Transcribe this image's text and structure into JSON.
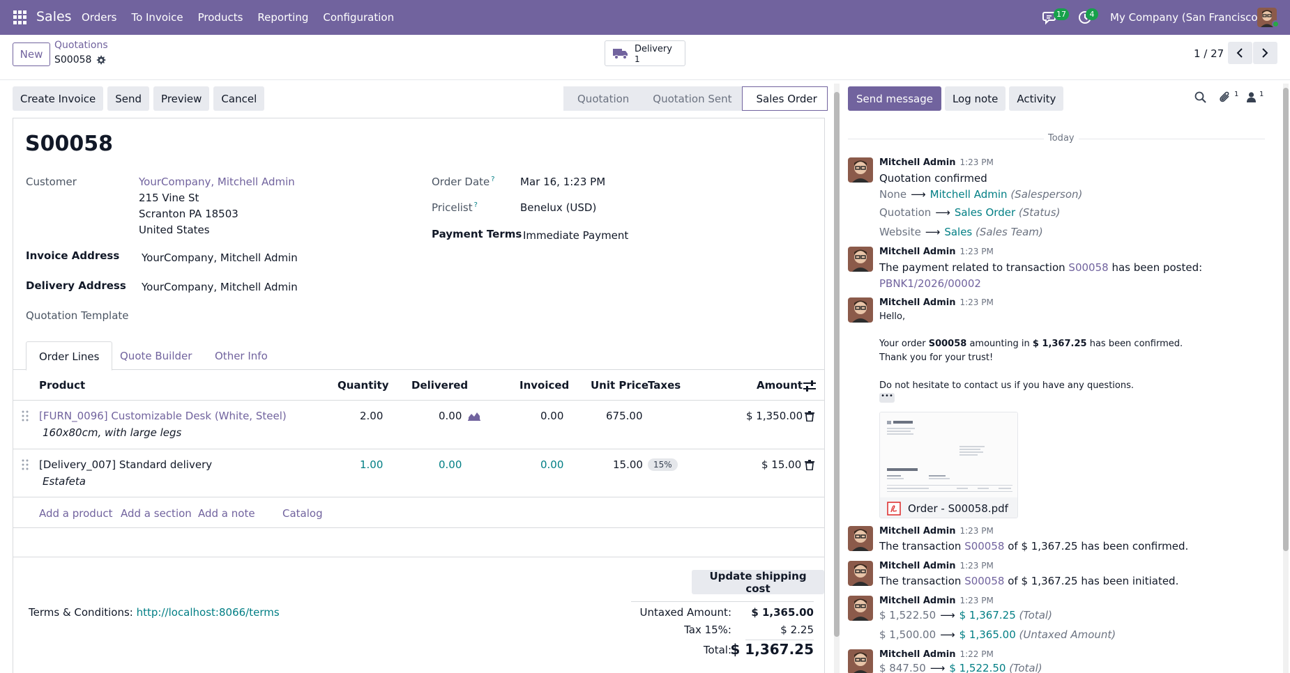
{
  "navbar": {
    "app_name": "Sales",
    "menu": [
      "Orders",
      "To Invoice",
      "Products",
      "Reporting",
      "Configuration"
    ],
    "messages_count": "17",
    "activities_count": "4",
    "company": "My Company (San Francisco)"
  },
  "control": {
    "new_label": "New",
    "breadcrumb": "Quotations",
    "record_name": "S00058",
    "smart_button": {
      "label": "Delivery",
      "count": "1"
    },
    "pager": "1 / 27"
  },
  "statusbar": {
    "actions": [
      "Create Invoice",
      "Send",
      "Preview",
      "Cancel"
    ],
    "stages": [
      "Quotation",
      "Quotation Sent",
      "Sales Order"
    ],
    "active_stage": "Sales Order"
  },
  "form": {
    "title": "S00058",
    "customer_label": "Customer",
    "customer_name": "YourCompany, Mitchell Admin",
    "customer_address": [
      "215 Vine St",
      "Scranton PA 18503",
      "United States"
    ],
    "invoice_address_label": "Invoice Address",
    "invoice_address": "YourCompany, Mitchell Admin",
    "delivery_address_label": "Delivery Address",
    "delivery_address": "YourCompany, Mitchell Admin",
    "quotation_template_label": "Quotation Template",
    "order_date_label": "Order Date",
    "order_date": "Mar 16, 1:23 PM",
    "pricelist_label": "Pricelist",
    "pricelist": "Benelux (USD)",
    "payment_terms_label": "Payment Terms",
    "payment_terms": "Immediate Payment",
    "help_mark": "?"
  },
  "tabs": [
    "Order Lines",
    "Quote Builder",
    "Other Info"
  ],
  "table": {
    "headers": {
      "product": "Product",
      "quantity": "Quantity",
      "delivered": "Delivered",
      "invoiced": "Invoiced",
      "unit_price": "Unit Price",
      "taxes": "Taxes",
      "amount": "Amount"
    },
    "rows": [
      {
        "product": "[FURN_0096] Customizable Desk (White, Steel)",
        "description": "160x80cm, with large legs",
        "quantity": "2.00",
        "delivered": "0.00",
        "invoiced": "0.00",
        "unit_price": "675.00",
        "taxes": "",
        "amount": "$ 1,350.00"
      },
      {
        "product": "[Delivery_007] Standard delivery",
        "description": "Estafeta",
        "quantity": "1.00",
        "delivered": "0.00",
        "invoiced": "0.00",
        "unit_price": "15.00",
        "taxes": "15%",
        "amount": "$ 15.00"
      }
    ],
    "add_links": [
      "Add a product",
      "Add a section",
      "Add a note",
      "Catalog"
    ]
  },
  "footer": {
    "update_shipping": "Update shipping cost",
    "terms_label": "Terms & Conditions:",
    "terms_link": "http://localhost:8066/terms",
    "untaxed_label": "Untaxed Amount:",
    "untaxed_value": "$ 1,365.00",
    "tax_label": "Tax 15%:",
    "tax_value": "$ 2.25",
    "total_label": "Total:",
    "total_value": "$ 1,367.25"
  },
  "chatter": {
    "send_message": "Send message",
    "log_note": "Log note",
    "activity": "Activity",
    "attachments_count": "1",
    "followers_count": "1",
    "today": "Today",
    "messages": [
      {
        "author": "Mitchell Admin",
        "time": "1:23 PM",
        "title": "Quotation confirmed",
        "changes": [
          {
            "old": "None",
            "new": "Mitchell Admin",
            "field": "(Salesperson)"
          },
          {
            "old": "Quotation",
            "new": "Sales Order",
            "field": "(Status)"
          },
          {
            "old": "Website",
            "new": "Sales",
            "field": "(Sales Team)"
          }
        ]
      },
      {
        "author": "Mitchell Admin",
        "time": "1:23 PM",
        "text_before": "The payment related to transaction",
        "link": "S00058",
        "text_after": "has been posted:",
        "link2": "PBNK1/2026/00002"
      },
      {
        "author": "Mitchell Admin",
        "time": "1:23 PM",
        "greeting": "Hello,",
        "line1_a": "Your order",
        "line1_b": "S00058",
        "line1_c": "amounting in",
        "line1_d": "$ 1,367.25",
        "line1_e": "has been confirmed.",
        "line2": "Thank you for your trust!",
        "line3": "Do not hesitate to contact us if you have any questions.",
        "attachment": "Order - S00058.pdf"
      },
      {
        "author": "Mitchell Admin",
        "time": "1:23 PM",
        "a": "The transaction",
        "link": "S00058",
        "b": "of $ 1,367.25 has been confirmed."
      },
      {
        "author": "Mitchell Admin",
        "time": "1:23 PM",
        "a": "The transaction",
        "link": "S00058",
        "b": "of $ 1,367.25 has been initiated."
      },
      {
        "author": "Mitchell Admin",
        "time": "1:23 PM",
        "changes": [
          {
            "old": "$ 1,522.50",
            "new": "$ 1,367.25",
            "field": "(Total)"
          },
          {
            "old": "$ 1,500.00",
            "new": "$ 1,365.00",
            "field": "(Untaxed Amount)"
          }
        ]
      },
      {
        "author": "Mitchell Admin",
        "time": "1:22 PM",
        "changes": [
          {
            "old": "$ 847.50",
            "new": "$ 1,522.50",
            "field": "(Total)"
          }
        ]
      }
    ],
    "arrow": "⟶"
  },
  "colors": {
    "brand": "#71639e",
    "teal": "#017e84",
    "badge": "#17a14b"
  }
}
